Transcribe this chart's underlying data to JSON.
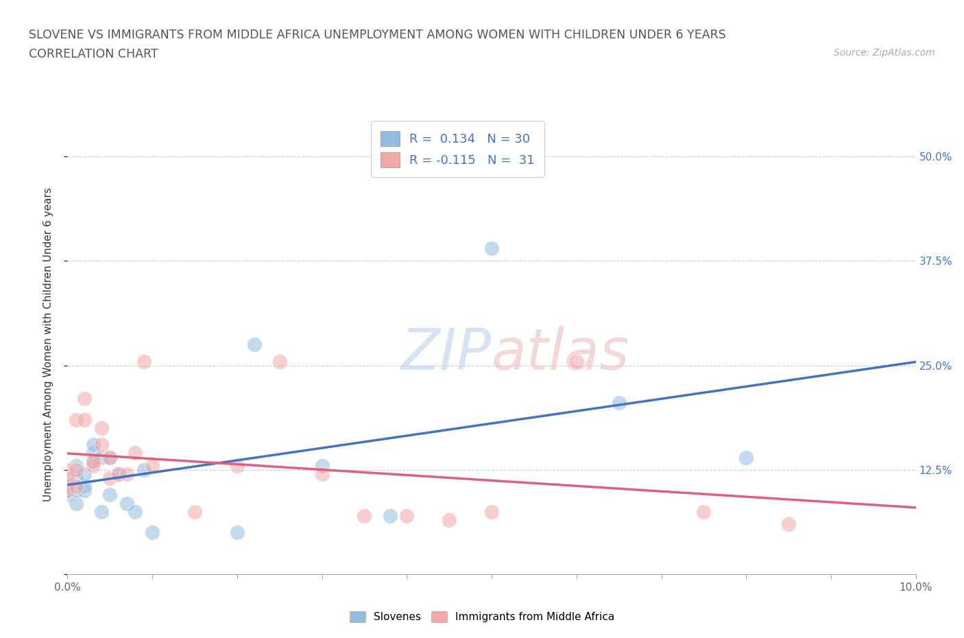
{
  "title_line1": "SLOVENE VS IMMIGRANTS FROM MIDDLE AFRICA UNEMPLOYMENT AMONG WOMEN WITH CHILDREN UNDER 6 YEARS",
  "title_line2": "CORRELATION CHART",
  "source_text": "Source: ZipAtlas.com",
  "ylabel": "Unemployment Among Women with Children Under 6 years",
  "xlim": [
    0.0,
    0.1
  ],
  "ylim": [
    0.0,
    0.55
  ],
  "xticks": [
    0.0,
    0.01,
    0.02,
    0.03,
    0.04,
    0.05,
    0.06,
    0.07,
    0.08,
    0.09,
    0.1
  ],
  "xtick_labels": [
    "0.0%",
    "",
    "",
    "",
    "",
    "",
    "",
    "",
    "",
    "",
    "10.0%"
  ],
  "yticks": [
    0.0,
    0.125,
    0.25,
    0.375,
    0.5
  ],
  "ytick_labels": [
    "",
    "12.5%",
    "25.0%",
    "37.5%",
    "50.0%"
  ],
  "blue_R": 0.134,
  "blue_N": 30,
  "pink_R": -0.115,
  "pink_N": 31,
  "blue_color": "#92bce0",
  "pink_color": "#f4a7a7",
  "blue_line_color": "#4472c4",
  "pink_line_color": "#e06080",
  "watermark": "ZIPatlas",
  "blue_scatter_x": [
    0.0,
    0.0,
    0.0,
    0.0,
    0.001,
    0.001,
    0.001,
    0.001,
    0.002,
    0.002,
    0.002,
    0.003,
    0.003,
    0.003,
    0.004,
    0.004,
    0.005,
    0.005,
    0.006,
    0.007,
    0.008,
    0.009,
    0.01,
    0.02,
    0.022,
    0.03,
    0.038,
    0.05,
    0.065,
    0.08
  ],
  "blue_scatter_y": [
    0.105,
    0.115,
    0.1,
    0.095,
    0.085,
    0.1,
    0.115,
    0.13,
    0.1,
    0.105,
    0.12,
    0.135,
    0.145,
    0.155,
    0.075,
    0.14,
    0.095,
    0.14,
    0.12,
    0.085,
    0.075,
    0.125,
    0.05,
    0.05,
    0.275,
    0.13,
    0.07,
    0.39,
    0.205,
    0.14
  ],
  "pink_scatter_x": [
    0.0,
    0.0,
    0.0,
    0.0,
    0.001,
    0.001,
    0.001,
    0.002,
    0.002,
    0.003,
    0.003,
    0.004,
    0.004,
    0.005,
    0.005,
    0.006,
    0.007,
    0.008,
    0.009,
    0.01,
    0.015,
    0.02,
    0.025,
    0.03,
    0.035,
    0.04,
    0.045,
    0.05,
    0.06,
    0.075,
    0.085
  ],
  "pink_scatter_y": [
    0.1,
    0.105,
    0.115,
    0.125,
    0.105,
    0.125,
    0.185,
    0.185,
    0.21,
    0.13,
    0.135,
    0.155,
    0.175,
    0.115,
    0.14,
    0.12,
    0.12,
    0.145,
    0.255,
    0.13,
    0.075,
    0.13,
    0.255,
    0.12,
    0.07,
    0.07,
    0.065,
    0.075,
    0.255,
    0.075,
    0.06
  ],
  "bubble_size": 250
}
